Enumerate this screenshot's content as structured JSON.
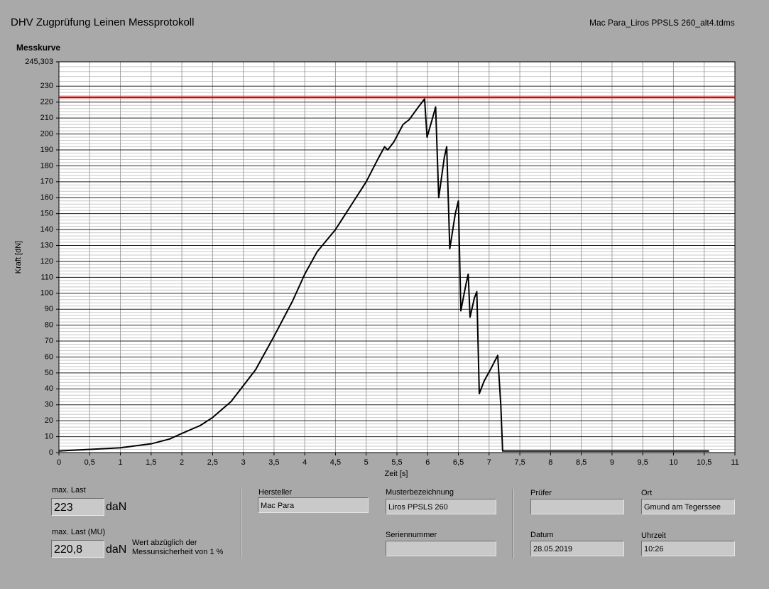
{
  "header": {
    "title": "DHV Zugprüfung Leinen Messprotokoll",
    "file": "Mac Para_Liros PPSLS 260_alt4.tdms"
  },
  "chart_data": {
    "type": "line",
    "title": "Messkurve",
    "x_label": "Zeit [s]",
    "y_label": "Kraft [dN]",
    "xlim": [
      0,
      11
    ],
    "ylim": [
      0,
      245.303
    ],
    "grid": true,
    "xticks": [
      0,
      {
        "value": 0.5,
        "label": "0,5"
      },
      1,
      {
        "value": 1.5,
        "label": "1,5"
      },
      2,
      {
        "value": 2.5,
        "label": "2,5"
      },
      3,
      {
        "value": 3.5,
        "label": "3,5"
      },
      4,
      {
        "value": 4.5,
        "label": "4,5"
      },
      5,
      {
        "value": 5.5,
        "label": "5,5"
      },
      6,
      {
        "value": 6.5,
        "label": "6,5"
      },
      7,
      {
        "value": 7.5,
        "label": "7,5"
      },
      8,
      {
        "value": 8.5,
        "label": "8,5"
      },
      9,
      {
        "value": 9.5,
        "label": "9,5"
      },
      10,
      {
        "value": 10.5,
        "label": "10,5"
      },
      11
    ],
    "yticks": [
      0,
      10,
      20,
      30,
      40,
      50,
      60,
      70,
      80,
      90,
      100,
      110,
      120,
      130,
      140,
      150,
      160,
      170,
      180,
      190,
      200,
      210,
      220,
      230,
      {
        "value": 245.303,
        "label": "245,303"
      }
    ],
    "series": [
      {
        "color": "#000000",
        "x": [
          0,
          0.5,
          1,
          1.5,
          1.8,
          2,
          2.3,
          2.5,
          2.8,
          3,
          3.2,
          3.5,
          3.8,
          4,
          4.2,
          4.5,
          4.8,
          5,
          5.2,
          5.3,
          5.35,
          5.45,
          5.6,
          5.7,
          5.85,
          5.95,
          5.99,
          6.08,
          6.13,
          6.18,
          6.27,
          6.31,
          6.36,
          6.45,
          6.5,
          6.54,
          6.62,
          6.66,
          6.69,
          6.76,
          6.8,
          6.84,
          6.92,
          7.02,
          7.14,
          7.19,
          7.22,
          7.5,
          10.58
        ],
        "values": [
          1,
          2,
          3,
          5.5,
          8.5,
          12,
          17,
          22,
          32,
          42,
          52,
          73,
          95,
          112,
          126,
          140,
          158,
          170,
          185,
          192,
          190,
          195,
          206,
          209,
          217,
          222,
          198,
          210,
          217,
          160,
          185,
          192,
          128,
          150,
          158,
          89,
          105,
          112,
          85,
          97,
          101,
          37,
          45,
          52,
          61,
          30,
          1,
          1,
          1
        ]
      },
      {
        "color": "#e00000",
        "x": [
          0,
          11
        ],
        "values": [
          223,
          223
        ]
      }
    ]
  },
  "results": {
    "max_label": "max. Last",
    "max_value": "223",
    "max_unit": "daN",
    "mu_label": "max. Last (MU)",
    "mu_value": "220,8",
    "mu_unit": "daN",
    "note_line1": "Wert abzüglich der",
    "note_line2": "Messunsicherheit von 1 %"
  },
  "fields": {
    "hersteller_label": "Hersteller",
    "hersteller": "Mac Para",
    "muster_label": "Musterbezeichnung",
    "muster": "Liros PPSLS 260",
    "serie_label": "Seriennummer",
    "pruefer_label": "Prüfer",
    "ort_label": "Ort",
    "ort": "Gmund am Tegerssee",
    "datum_label": "Datum",
    "datum": "28.05.2019",
    "uhrzeit_label": "Uhrzeit",
    "uhrzeit": "10:26"
  }
}
